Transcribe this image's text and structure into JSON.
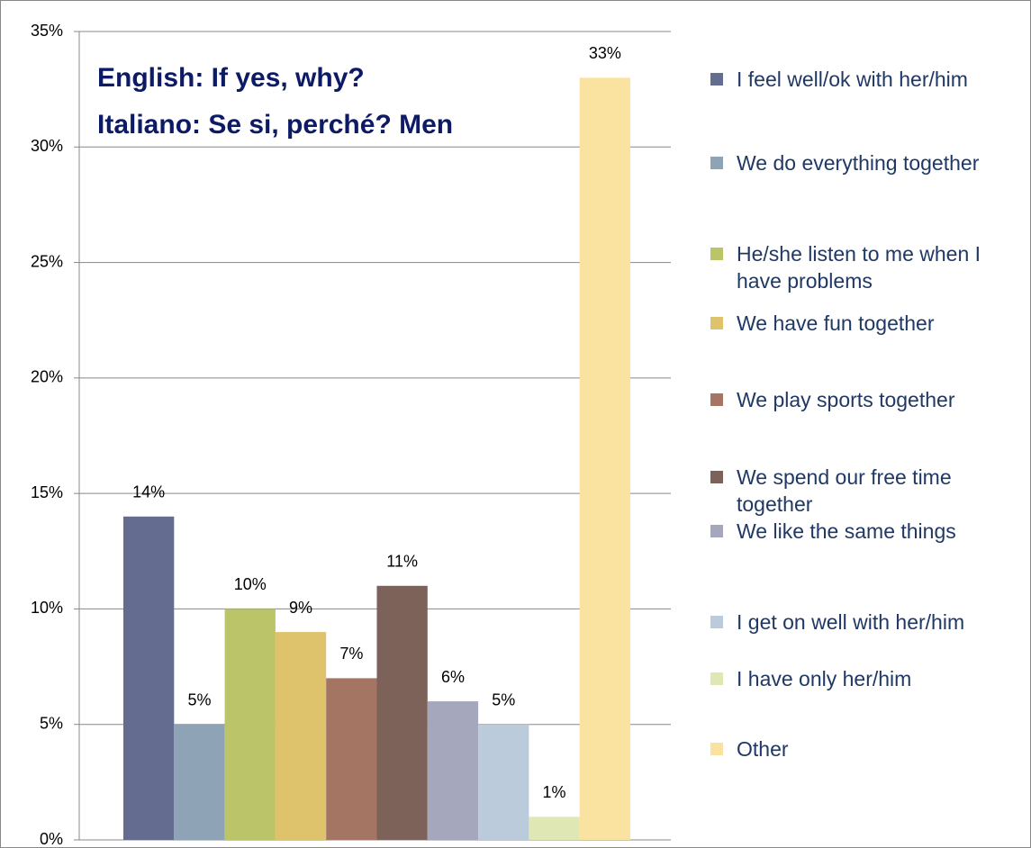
{
  "chart_data": {
    "type": "bar",
    "title": [
      "English: If yes, why?",
      "Italiano: Se si, perché?  Men"
    ],
    "categories": [
      null
    ],
    "series": [
      {
        "name": "I feel well/ok with her/him",
        "color": "#646d8f",
        "values": [
          14
        ],
        "value_labels": [
          "14%"
        ]
      },
      {
        "name": "We do everything together",
        "color": "#8ea3b5",
        "values": [
          5
        ],
        "value_labels": [
          "5%"
        ]
      },
      {
        "name": "He/she listen to me when I have problems",
        "color": "#bcc46a",
        "values": [
          10
        ],
        "value_labels": [
          "10%"
        ]
      },
      {
        "name": "We have fun together",
        "color": "#dfc36c",
        "values": [
          9
        ],
        "value_labels": [
          "9%"
        ]
      },
      {
        "name": "We play sports together",
        "color": "#a57563",
        "values": [
          7
        ],
        "value_labels": [
          "7%"
        ]
      },
      {
        "name": "We spend our free time together",
        "color": "#7d6259",
        "values": [
          11
        ],
        "value_labels": [
          "11%"
        ]
      },
      {
        "name": "We like the same things",
        "color": "#a5a8bd",
        "values": [
          6
        ],
        "value_labels": [
          "6%"
        ]
      },
      {
        "name": "I get on well with her/him",
        "color": "#bccbdb",
        "values": [
          5
        ],
        "value_labels": [
          "5%"
        ]
      },
      {
        "name": "I have only her/him",
        "color": "#dfe8b4",
        "values": [
          1
        ],
        "value_labels": [
          "1%"
        ]
      },
      {
        "name": "Other",
        "color": "#fae3a0",
        "values": [
          33
        ],
        "value_labels": [
          "33%"
        ]
      }
    ],
    "ylim": [
      0,
      35
    ],
    "yticks": [
      {
        "value": 0,
        "label": "0%"
      },
      {
        "value": 5,
        "label": "5%"
      },
      {
        "value": 10,
        "label": "10%"
      },
      {
        "value": 15,
        "label": "15%"
      },
      {
        "value": 20,
        "label": "20%"
      },
      {
        "value": 25,
        "label": "25%"
      },
      {
        "value": 30,
        "label": "30%"
      },
      {
        "value": 35,
        "label": "35%"
      }
    ],
    "grid": true,
    "legend": "right"
  }
}
